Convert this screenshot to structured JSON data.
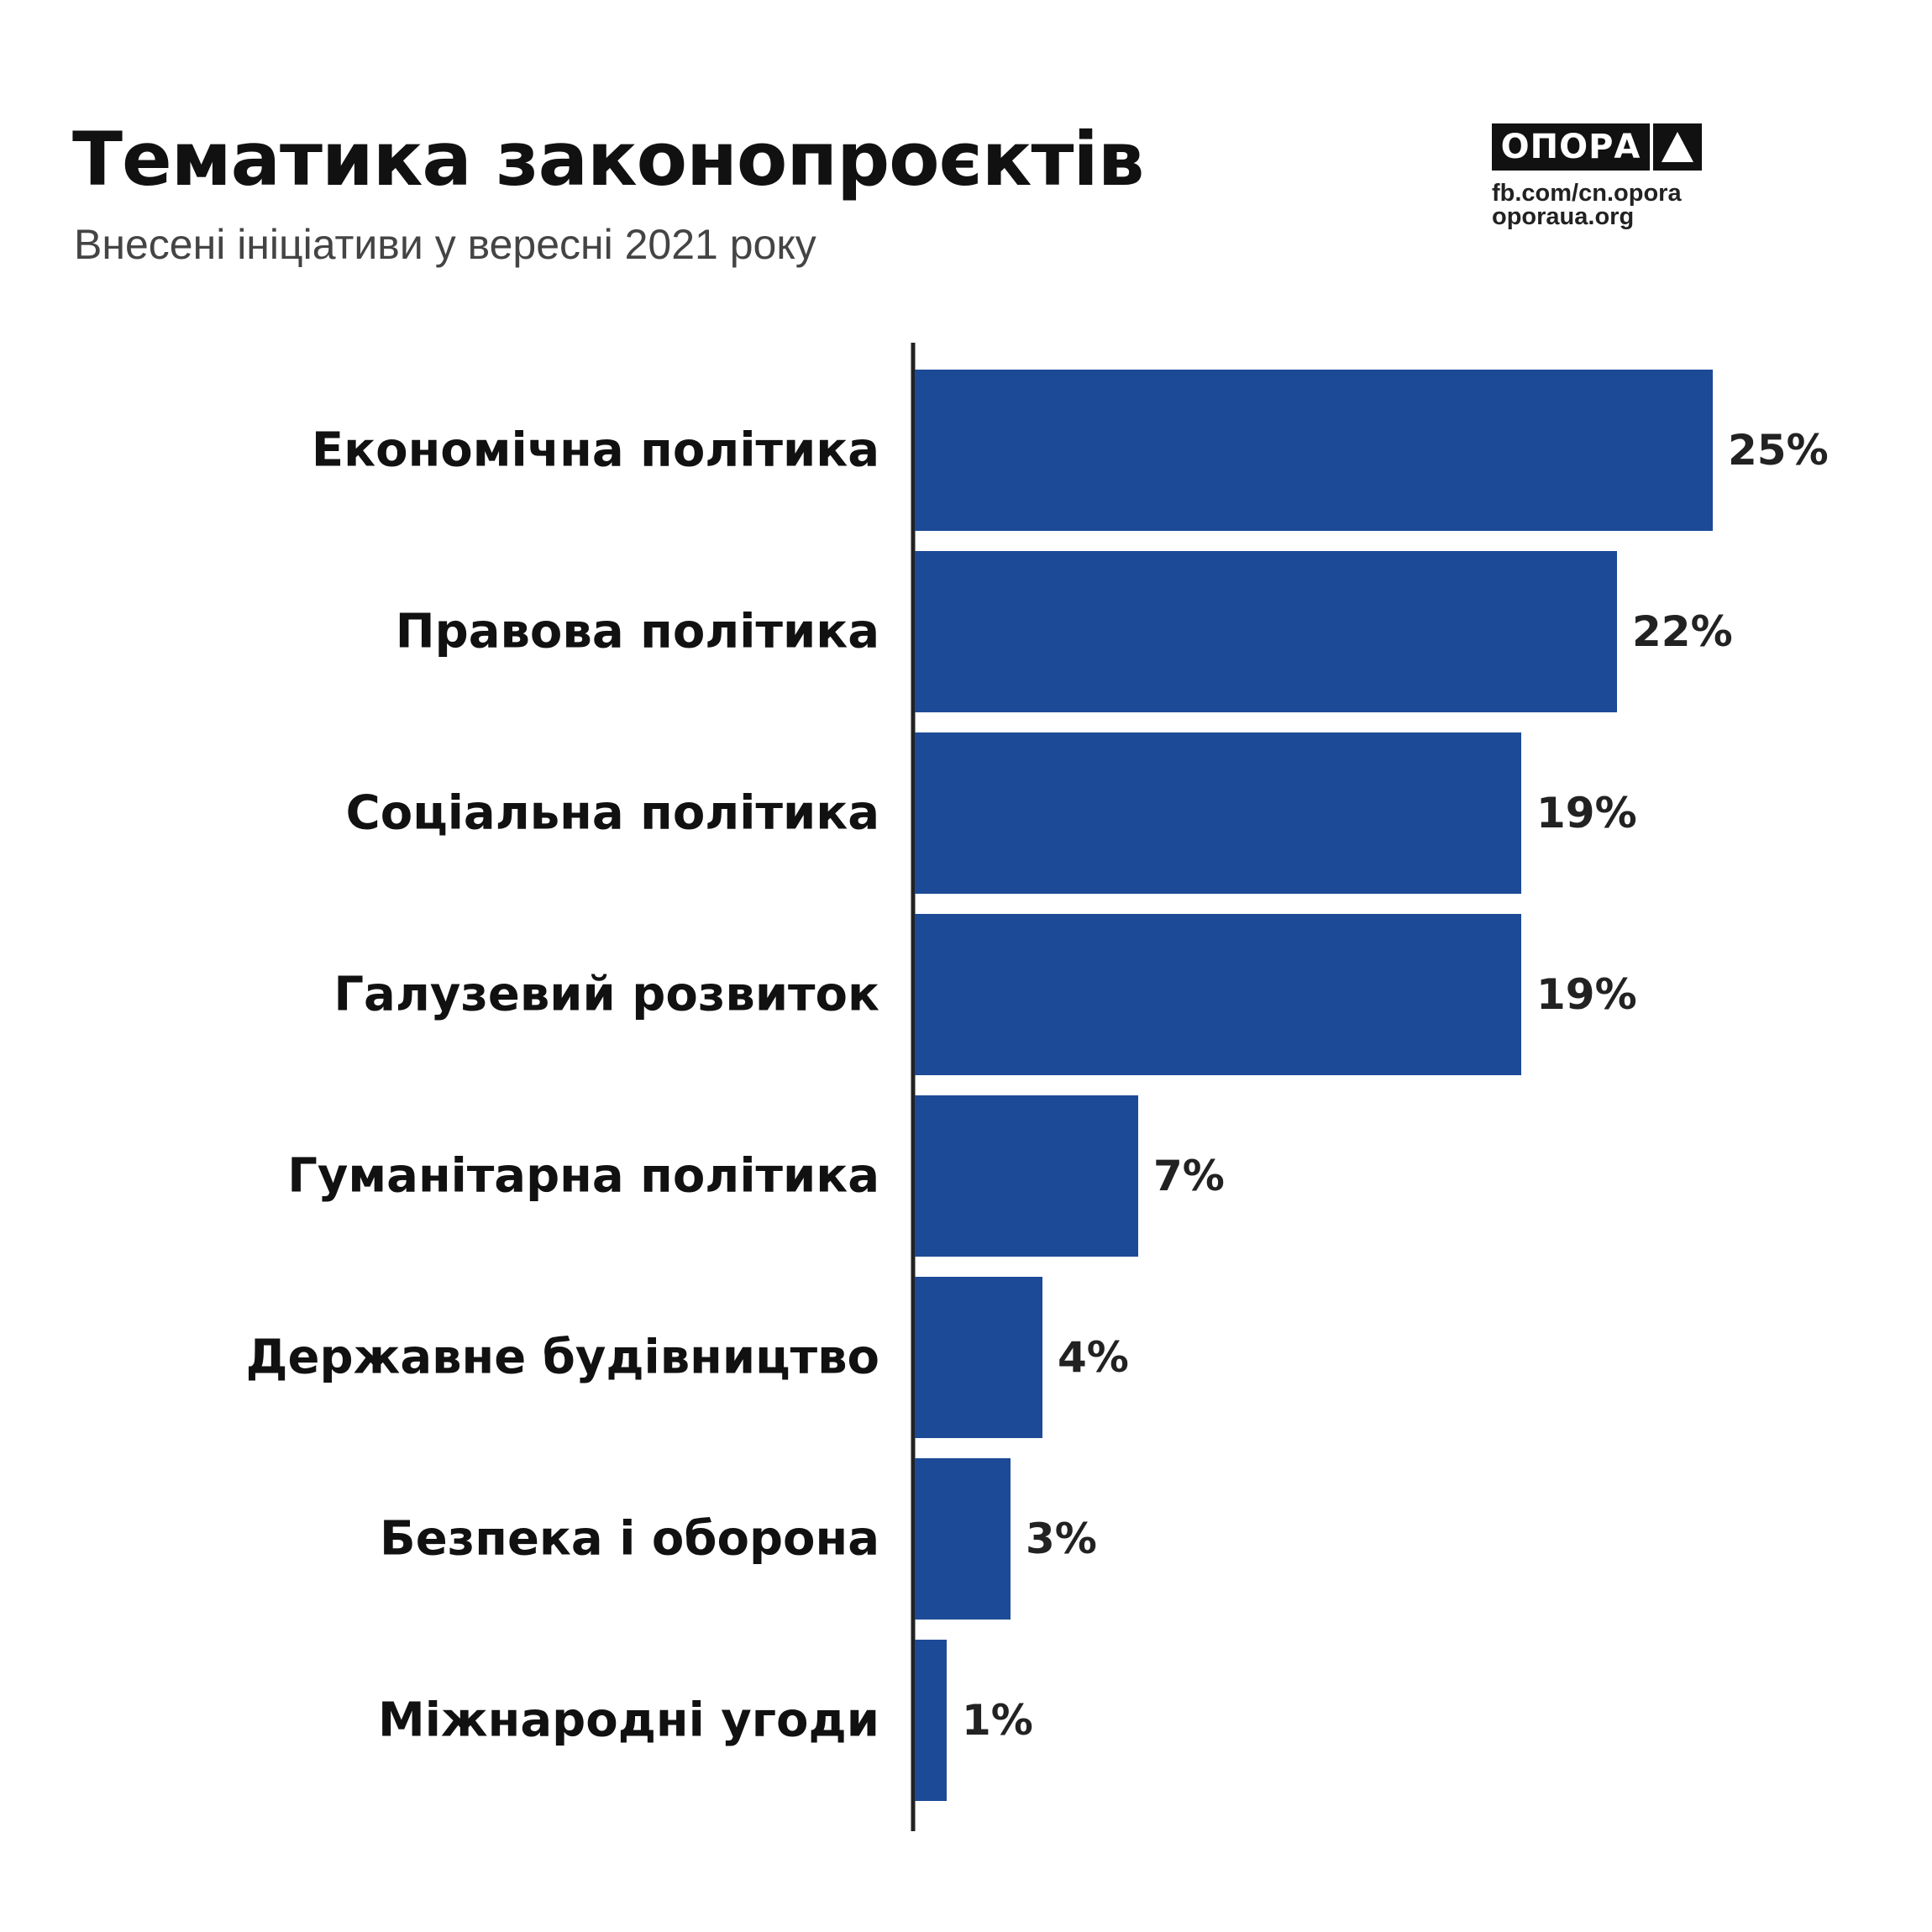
{
  "header": {
    "title": "Тематика законопроєктів",
    "subtitle": "Внесені ініціативи у вересні 2021 року"
  },
  "brand": {
    "logo_text": "ОПОРА",
    "logo_icon": "triangle-icon",
    "facebook": "fb.com/cn.opora",
    "website": "oporaua.org"
  },
  "colors": {
    "bar": "#1d4a97",
    "axis": "#222222",
    "text": "#111111"
  },
  "chart_data": {
    "type": "bar",
    "orientation": "horizontal",
    "title": "Тематика законопроєктів",
    "subtitle": "Внесені ініціативи у вересні 2021 року",
    "categories": [
      "Економічна політика",
      "Правова політика",
      "Соціальна політика",
      "Галузевий розвиток",
      "Гуманітарна політика",
      "Державне будівництво",
      "Безпека і оборона",
      "Міжнародні угоди"
    ],
    "values": [
      25,
      22,
      19,
      19,
      7,
      4,
      3,
      1
    ],
    "value_labels": [
      "25%",
      "22%",
      "19%",
      "19%",
      "7%",
      "4%",
      "3%",
      "1%"
    ],
    "unit": "%",
    "xlim": [
      0,
      25
    ],
    "grid": false,
    "legend": "none"
  }
}
